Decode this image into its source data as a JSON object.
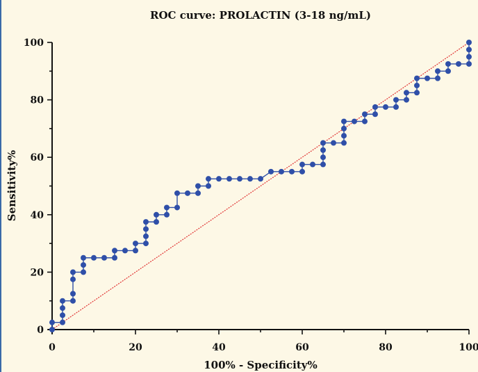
{
  "chart_data": {
    "type": "line",
    "title": "ROC curve: PROLACTIN (3-18 ng/mL)",
    "xlabel": "100% - Specificity%",
    "ylabel": "Sensitivity%",
    "xlim": [
      0,
      100
    ],
    "ylim": [
      0,
      100
    ],
    "xticks": [
      "0",
      "20",
      "40",
      "60",
      "80",
      "100"
    ],
    "yticks": [
      "0",
      "20",
      "40",
      "60",
      "80",
      "100"
    ],
    "grid": false,
    "colors": {
      "roc": "#2f4fa8",
      "reference": "#e03030",
      "axis": "#111111"
    },
    "series": [
      {
        "x": [
          0,
          0,
          2.5,
          2.5,
          2.5,
          2.5,
          5,
          5,
          5,
          5,
          7.5,
          7.5,
          7.5,
          10,
          12.5,
          15,
          15,
          17.5,
          20,
          20,
          22.5,
          22.5,
          22.5,
          22.5,
          25,
          25,
          27.5,
          27.5,
          30,
          30,
          32.5,
          35,
          35,
          37.5,
          37.5,
          40,
          42.5,
          45,
          47.5,
          50,
          52.5,
          55,
          57.5,
          60,
          60,
          62.5,
          65,
          65,
          65,
          65,
          67.5,
          70,
          70,
          70,
          70,
          72.5,
          75,
          75,
          77.5,
          77.5,
          80,
          82.5,
          82.5,
          85,
          85,
          87.5,
          87.5,
          87.5,
          90,
          92.5,
          92.5,
          95,
          95,
          97.5,
          100,
          100,
          100,
          100
        ],
        "y": [
          0,
          2.5,
          2.5,
          5,
          7.5,
          10,
          10,
          12.5,
          17.5,
          20,
          20,
          22.5,
          25,
          25,
          25,
          25,
          27.5,
          27.5,
          27.5,
          30,
          30,
          32.5,
          35,
          37.5,
          37.5,
          40,
          40,
          42.5,
          42.5,
          47.5,
          47.5,
          47.5,
          50,
          50,
          52.5,
          52.5,
          52.5,
          52.5,
          52.5,
          52.5,
          55,
          55,
          55,
          55,
          57.5,
          57.5,
          57.5,
          60,
          62.5,
          65,
          65,
          65,
          67.5,
          70,
          72.5,
          72.5,
          72.5,
          75,
          75,
          77.5,
          77.5,
          77.5,
          80,
          80,
          82.5,
          82.5,
          85,
          87.5,
          87.5,
          87.5,
          90,
          90,
          92.5,
          92.5,
          92.5,
          95,
          97.5,
          100
        ]
      },
      {
        "x": [
          0,
          100
        ],
        "y": [
          0,
          100
        ]
      }
    ]
  }
}
